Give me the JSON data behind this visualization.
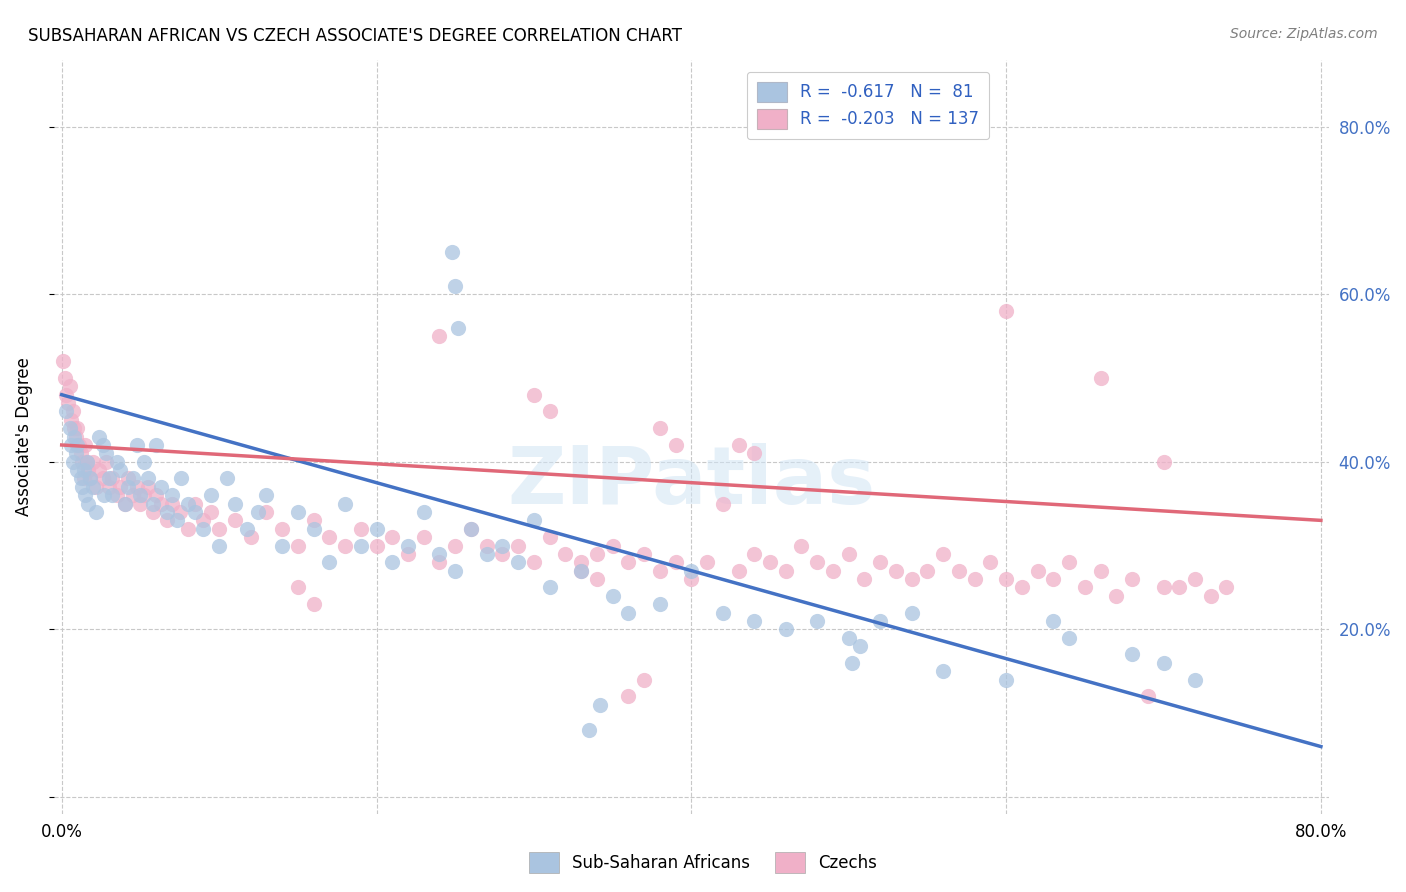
{
  "title": "SUBSAHARAN AFRICAN VS CZECH ASSOCIATE'S DEGREE CORRELATION CHART",
  "source": "Source: ZipAtlas.com",
  "ylabel": "Associate's Degree",
  "legend_text_color": "#3060c0",
  "blue_color": "#aac4e0",
  "pink_color": "#f0b0c8",
  "blue_line_color": "#4472c4",
  "pink_line_color": "#e06878",
  "watermark_text": "ZIPatlas",
  "blue_scatter": [
    [
      0.003,
      0.46
    ],
    [
      0.005,
      0.44
    ],
    [
      0.006,
      0.42
    ],
    [
      0.007,
      0.4
    ],
    [
      0.008,
      0.43
    ],
    [
      0.009,
      0.41
    ],
    [
      0.01,
      0.42
    ],
    [
      0.01,
      0.39
    ],
    [
      0.012,
      0.38
    ],
    [
      0.013,
      0.37
    ],
    [
      0.014,
      0.39
    ],
    [
      0.015,
      0.36
    ],
    [
      0.016,
      0.4
    ],
    [
      0.017,
      0.35
    ],
    [
      0.018,
      0.38
    ],
    [
      0.02,
      0.37
    ],
    [
      0.022,
      0.34
    ],
    [
      0.024,
      0.43
    ],
    [
      0.026,
      0.42
    ],
    [
      0.027,
      0.36
    ],
    [
      0.028,
      0.41
    ],
    [
      0.03,
      0.38
    ],
    [
      0.032,
      0.36
    ],
    [
      0.035,
      0.4
    ],
    [
      0.037,
      0.39
    ],
    [
      0.04,
      0.35
    ],
    [
      0.042,
      0.37
    ],
    [
      0.045,
      0.38
    ],
    [
      0.048,
      0.42
    ],
    [
      0.05,
      0.36
    ],
    [
      0.052,
      0.4
    ],
    [
      0.055,
      0.38
    ],
    [
      0.058,
      0.35
    ],
    [
      0.06,
      0.42
    ],
    [
      0.063,
      0.37
    ],
    [
      0.067,
      0.34
    ],
    [
      0.07,
      0.36
    ],
    [
      0.073,
      0.33
    ],
    [
      0.076,
      0.38
    ],
    [
      0.08,
      0.35
    ],
    [
      0.085,
      0.34
    ],
    [
      0.09,
      0.32
    ],
    [
      0.095,
      0.36
    ],
    [
      0.1,
      0.3
    ],
    [
      0.105,
      0.38
    ],
    [
      0.11,
      0.35
    ],
    [
      0.118,
      0.32
    ],
    [
      0.125,
      0.34
    ],
    [
      0.13,
      0.36
    ],
    [
      0.14,
      0.3
    ],
    [
      0.15,
      0.34
    ],
    [
      0.16,
      0.32
    ],
    [
      0.17,
      0.28
    ],
    [
      0.18,
      0.35
    ],
    [
      0.19,
      0.3
    ],
    [
      0.2,
      0.32
    ],
    [
      0.21,
      0.28
    ],
    [
      0.22,
      0.3
    ],
    [
      0.23,
      0.34
    ],
    [
      0.24,
      0.29
    ],
    [
      0.25,
      0.27
    ],
    [
      0.26,
      0.32
    ],
    [
      0.27,
      0.29
    ],
    [
      0.28,
      0.3
    ],
    [
      0.29,
      0.28
    ],
    [
      0.3,
      0.33
    ],
    [
      0.31,
      0.25
    ],
    [
      0.33,
      0.27
    ],
    [
      0.35,
      0.24
    ],
    [
      0.36,
      0.22
    ],
    [
      0.38,
      0.23
    ],
    [
      0.4,
      0.27
    ],
    [
      0.42,
      0.22
    ],
    [
      0.44,
      0.21
    ],
    [
      0.46,
      0.2
    ],
    [
      0.48,
      0.21
    ],
    [
      0.5,
      0.19
    ],
    [
      0.52,
      0.21
    ],
    [
      0.54,
      0.22
    ],
    [
      0.56,
      0.15
    ],
    [
      0.6,
      0.14
    ],
    [
      0.7,
      0.16
    ],
    [
      0.248,
      0.65
    ],
    [
      0.25,
      0.61
    ],
    [
      0.252,
      0.56
    ],
    [
      0.335,
      0.08
    ],
    [
      0.342,
      0.11
    ],
    [
      0.502,
      0.16
    ],
    [
      0.507,
      0.18
    ],
    [
      0.63,
      0.21
    ],
    [
      0.64,
      0.19
    ],
    [
      0.68,
      0.17
    ],
    [
      0.72,
      0.14
    ]
  ],
  "pink_scatter": [
    [
      0.001,
      0.52
    ],
    [
      0.002,
      0.5
    ],
    [
      0.003,
      0.48
    ],
    [
      0.004,
      0.47
    ],
    [
      0.005,
      0.49
    ],
    [
      0.006,
      0.45
    ],
    [
      0.007,
      0.46
    ],
    [
      0.008,
      0.44
    ],
    [
      0.009,
      0.43
    ],
    [
      0.01,
      0.44
    ],
    [
      0.011,
      0.42
    ],
    [
      0.012,
      0.41
    ],
    [
      0.013,
      0.4
    ],
    [
      0.014,
      0.38
    ],
    [
      0.015,
      0.42
    ],
    [
      0.016,
      0.4
    ],
    [
      0.017,
      0.39
    ],
    [
      0.018,
      0.38
    ],
    [
      0.02,
      0.4
    ],
    [
      0.022,
      0.37
    ],
    [
      0.024,
      0.39
    ],
    [
      0.026,
      0.38
    ],
    [
      0.028,
      0.4
    ],
    [
      0.03,
      0.37
    ],
    [
      0.032,
      0.38
    ],
    [
      0.035,
      0.36
    ],
    [
      0.037,
      0.37
    ],
    [
      0.04,
      0.35
    ],
    [
      0.042,
      0.38
    ],
    [
      0.045,
      0.36
    ],
    [
      0.048,
      0.37
    ],
    [
      0.05,
      0.35
    ],
    [
      0.052,
      0.36
    ],
    [
      0.055,
      0.37
    ],
    [
      0.058,
      0.34
    ],
    [
      0.06,
      0.36
    ],
    [
      0.063,
      0.35
    ],
    [
      0.067,
      0.33
    ],
    [
      0.07,
      0.35
    ],
    [
      0.075,
      0.34
    ],
    [
      0.08,
      0.32
    ],
    [
      0.085,
      0.35
    ],
    [
      0.09,
      0.33
    ],
    [
      0.095,
      0.34
    ],
    [
      0.1,
      0.32
    ],
    [
      0.11,
      0.33
    ],
    [
      0.12,
      0.31
    ],
    [
      0.13,
      0.34
    ],
    [
      0.14,
      0.32
    ],
    [
      0.15,
      0.3
    ],
    [
      0.16,
      0.33
    ],
    [
      0.17,
      0.31
    ],
    [
      0.18,
      0.3
    ],
    [
      0.19,
      0.32
    ],
    [
      0.2,
      0.3
    ],
    [
      0.21,
      0.31
    ],
    [
      0.22,
      0.29
    ],
    [
      0.23,
      0.31
    ],
    [
      0.24,
      0.28
    ],
    [
      0.25,
      0.3
    ],
    [
      0.26,
      0.32
    ],
    [
      0.27,
      0.3
    ],
    [
      0.28,
      0.29
    ],
    [
      0.29,
      0.3
    ],
    [
      0.3,
      0.28
    ],
    [
      0.31,
      0.31
    ],
    [
      0.32,
      0.29
    ],
    [
      0.33,
      0.28
    ],
    [
      0.34,
      0.26
    ],
    [
      0.35,
      0.3
    ],
    [
      0.36,
      0.28
    ],
    [
      0.37,
      0.29
    ],
    [
      0.38,
      0.27
    ],
    [
      0.39,
      0.28
    ],
    [
      0.4,
      0.26
    ],
    [
      0.41,
      0.28
    ],
    [
      0.42,
      0.35
    ],
    [
      0.43,
      0.27
    ],
    [
      0.44,
      0.29
    ],
    [
      0.45,
      0.28
    ],
    [
      0.46,
      0.27
    ],
    [
      0.47,
      0.3
    ],
    [
      0.48,
      0.28
    ],
    [
      0.49,
      0.27
    ],
    [
      0.5,
      0.29
    ],
    [
      0.51,
      0.26
    ],
    [
      0.52,
      0.28
    ],
    [
      0.53,
      0.27
    ],
    [
      0.54,
      0.26
    ],
    [
      0.55,
      0.27
    ],
    [
      0.56,
      0.29
    ],
    [
      0.57,
      0.27
    ],
    [
      0.58,
      0.26
    ],
    [
      0.59,
      0.28
    ],
    [
      0.6,
      0.26
    ],
    [
      0.61,
      0.25
    ],
    [
      0.62,
      0.27
    ],
    [
      0.63,
      0.26
    ],
    [
      0.64,
      0.28
    ],
    [
      0.65,
      0.25
    ],
    [
      0.66,
      0.27
    ],
    [
      0.67,
      0.24
    ],
    [
      0.68,
      0.26
    ],
    [
      0.7,
      0.25
    ],
    [
      0.71,
      0.25
    ],
    [
      0.72,
      0.26
    ],
    [
      0.73,
      0.24
    ],
    [
      0.74,
      0.25
    ],
    [
      0.24,
      0.55
    ],
    [
      0.3,
      0.48
    ],
    [
      0.31,
      0.46
    ],
    [
      0.38,
      0.44
    ],
    [
      0.39,
      0.42
    ],
    [
      0.43,
      0.42
    ],
    [
      0.44,
      0.41
    ],
    [
      0.6,
      0.58
    ],
    [
      0.66,
      0.5
    ],
    [
      0.7,
      0.4
    ],
    [
      0.15,
      0.25
    ],
    [
      0.16,
      0.23
    ],
    [
      0.33,
      0.27
    ],
    [
      0.34,
      0.29
    ],
    [
      0.36,
      0.12
    ],
    [
      0.37,
      0.14
    ],
    [
      0.69,
      0.12
    ]
  ],
  "blue_trendline_x": [
    0.0,
    0.8
  ],
  "blue_trendline_y": [
    0.48,
    0.06
  ],
  "pink_trendline_x": [
    0.0,
    0.8
  ],
  "pink_trendline_y": [
    0.42,
    0.33
  ],
  "xmin": -0.005,
  "xmax": 0.805,
  "ymin": -0.02,
  "ymax": 0.88,
  "yticks": [
    0.0,
    0.2,
    0.4,
    0.6,
    0.8
  ],
  "ytick_labels_right": [
    "",
    "20.0%",
    "40.0%",
    "60.0%",
    "80.0%"
  ],
  "xtick_positions": [
    0.0,
    0.2,
    0.4,
    0.6,
    0.8
  ],
  "xtick_labels": [
    "0.0%",
    "",
    "",
    "",
    "80.0%"
  ]
}
